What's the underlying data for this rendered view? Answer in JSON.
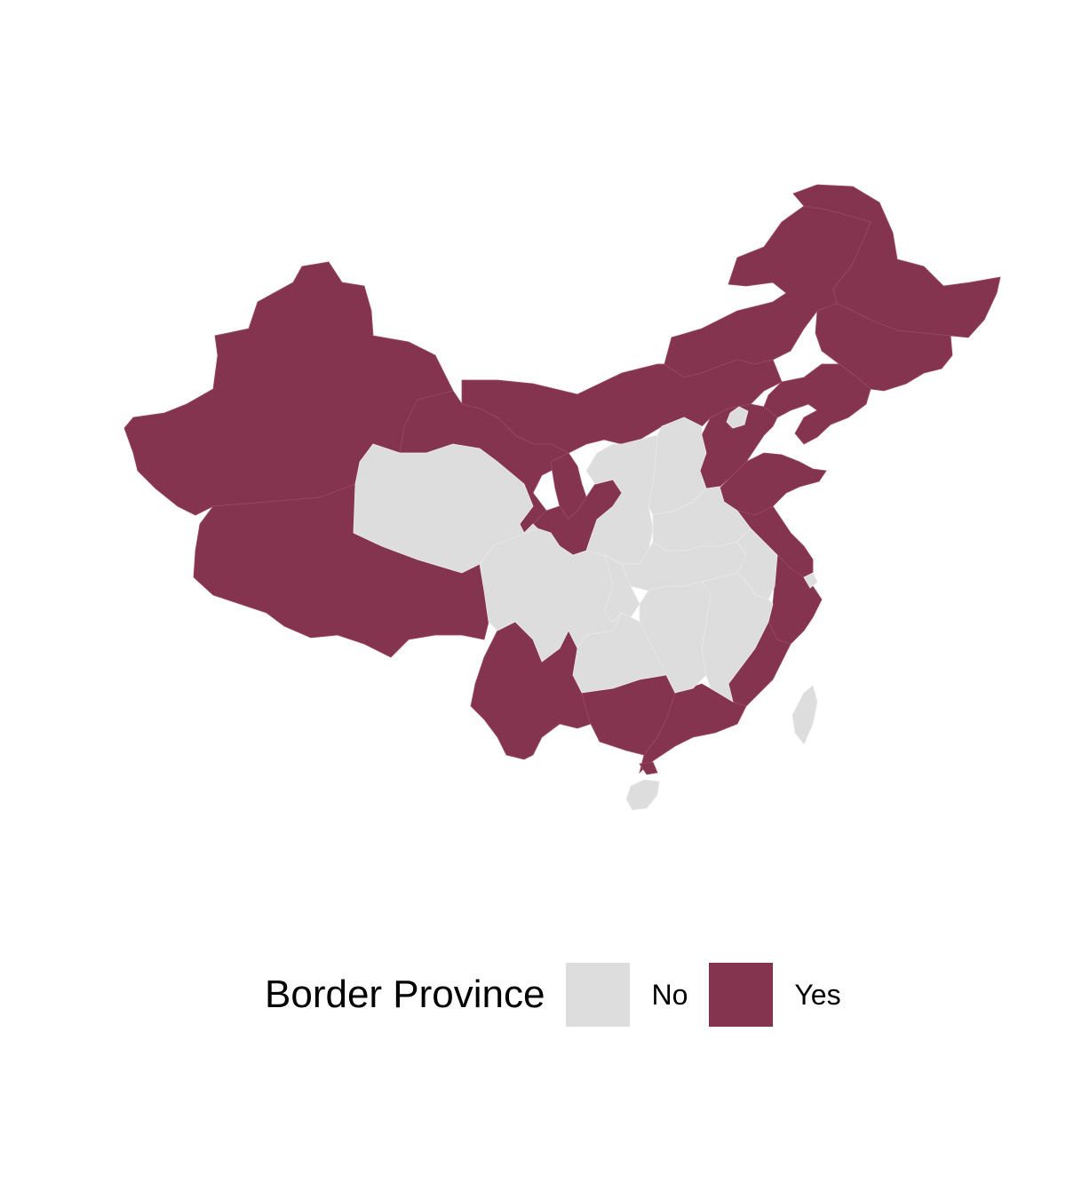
{
  "colors": {
    "yes": "#84344f",
    "no": "#dddddd",
    "border": "#9a4a64",
    "inner_border": "#e6e6e6"
  },
  "legend": {
    "title": "Border Province",
    "items": [
      {
        "label": "No",
        "color": "#dddddd"
      },
      {
        "label": "Yes",
        "color": "#84344f"
      }
    ]
  }
}
